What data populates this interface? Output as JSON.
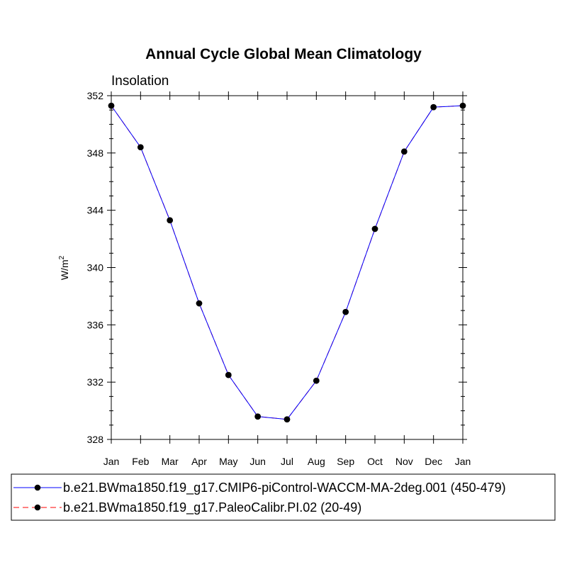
{
  "chart_data": {
    "type": "line",
    "title": "Annual Cycle Global Mean Climatology",
    "subtitle": "Insolation",
    "ylabel_base": "W/m",
    "ylabel_sup": "2",
    "xlabel": "",
    "categories": [
      "Jan",
      "Feb",
      "Mar",
      "Apr",
      "May",
      "Jun",
      "Jul",
      "Aug",
      "Sep",
      "Oct",
      "Nov",
      "Dec",
      "Jan"
    ],
    "ylim": [
      328,
      352
    ],
    "yticks": [
      328,
      332,
      336,
      340,
      344,
      348,
      352
    ],
    "ytick_labels": [
      "328",
      "332",
      "336",
      "340",
      "344",
      "348",
      "352"
    ],
    "yminor_step": 1,
    "series": [
      {
        "name": "b.e21.BWma1850.f19_g17.CMIP6-piControl-WACCM-MA-2deg.001 (450-479)",
        "color": "#0000ff",
        "line_style": "solid",
        "values": [
          351.3,
          348.4,
          343.3,
          337.5,
          332.5,
          329.6,
          329.4,
          332.1,
          336.9,
          342.7,
          348.1,
          351.2,
          351.3
        ]
      },
      {
        "name": "b.e21.BWma1850.f19_g17.PaleoCalibr.PI.02 (20-49)",
        "color": "#ff0000",
        "line_style": "dashed",
        "values": [
          351.3,
          348.4,
          343.3,
          337.5,
          332.5,
          329.6,
          329.4,
          332.1,
          336.9,
          342.7,
          348.1,
          351.2,
          351.3
        ]
      }
    ],
    "legend_position": "bottom"
  }
}
